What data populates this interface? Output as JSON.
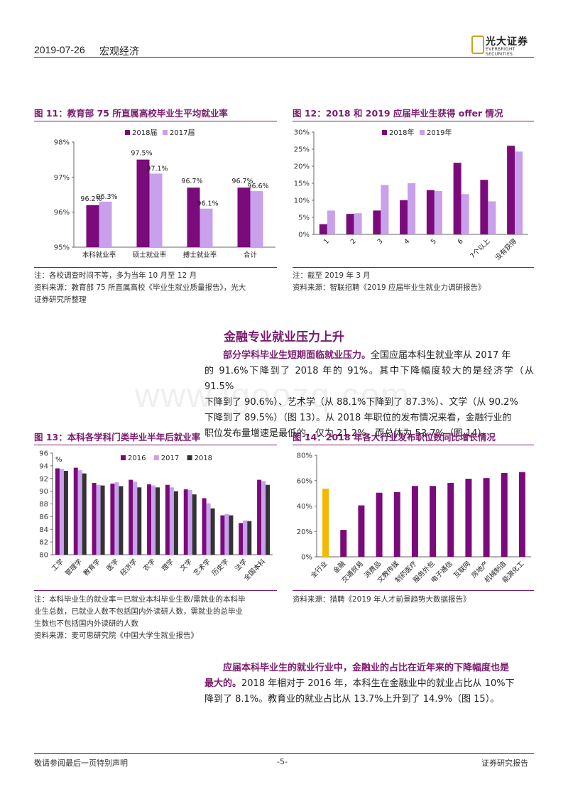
{
  "header": {
    "date": "2019-07-26",
    "section": "宏观经济",
    "logo_cn": "光大证券",
    "logo_en": "EVERBRIGHT SECURITIES"
  },
  "fig11": {
    "title": "图 11：教育部 75 所直属高校毕业生平均就业率",
    "note": "注：各校调查时间不等，多为当年 10 月至 12 月",
    "source_line1": "资料来源：教育部 75 所直属高校《毕业生就业质量报告》，光大",
    "source_line2": "证券研究所整理"
  },
  "fig12": {
    "title": "图 12：2018 和 2019 应届毕业生获得 offer 情况",
    "note": "注：截至 2019 年 3 月",
    "source": "资料来源：智联招聘《2019 应届毕业生就业力调研报告》"
  },
  "fig13": {
    "title": "图 13：本科各学科门类毕业半年后就业率",
    "note_line1": "注：本科毕业生的就业率＝已就业本科毕业生数/需就业的本科毕",
    "note_line2": "业生总数，已就业人数不包括国内外读研人数，需就业的总毕业",
    "note_line3": "生数也不包括国内外读研的人数",
    "source": "资料来源：麦可思研究院《中国大学生就业报告》"
  },
  "fig14": {
    "title": "图 14：2018 年各大行业发布职位数同比增长情况",
    "source": "资料来源：猎聘《2019 年人才前景趋势大数据报告》"
  },
  "section_title": "金融专业就业压力上升",
  "para1": {
    "lead": "部分学科毕业生短期面临就业压力。",
    "l1": "全国应届本科生就业率从 2017 年",
    "l2": "的 91.6%下降到了 2018 年的 91%。其中下降幅度较大的是经济学（从 91.5%",
    "l3": "下降到了 90.6%）、艺术学（从 88.1%下降到了 87.3%）、文学（从 90.2%",
    "l4": "下降到了 89.5%）（图 13）。从 2018 年职位的发布情况来看，金融行业的",
    "l5": "职位发布量增速是最低的，仅为 21.2%，而总体为 53.7%（图 14）。"
  },
  "para2": {
    "lead1": "应届本科毕业生的就业行业中，金融业的占比在近年来的下降幅度也是",
    "lead2": "最大的。",
    "t2": "2018 年相对于 2016 年，本科生在金融业中的就业占比从 10%下",
    "t3": "降到了 8.1%。教育业的就业占比从 13.7%上升到了 14.9%（图 15）。"
  },
  "footer": {
    "left": "敬请参阅最后一页特别声明",
    "center": "-5-",
    "right": "证券研究报告"
  },
  "watermark": "www.igoozq.com",
  "colors": {
    "purple": "#7b0a7b",
    "light_purple": "#c9a0ec",
    "black": "#333333",
    "gold": "#f5b800",
    "title": "#7b1a6e"
  },
  "chart_data": [
    {
      "id": "fig11",
      "type": "bar",
      "categories": [
        "本科就业率",
        "硕士就业率",
        "搏士就业率",
        "合计"
      ],
      "series": [
        {
          "name": "2018届",
          "values": [
            96.2,
            97.5,
            96.7,
            96.7
          ],
          "labels": [
            "96.2%",
            "97.5%",
            "96.7%",
            "96.7%"
          ]
        },
        {
          "name": "2017届",
          "values": [
            96.3,
            97.1,
            96.1,
            96.6
          ],
          "labels": [
            "96.3%",
            "97.1%",
            "96.1%",
            "96.6%"
          ]
        }
      ],
      "ylim": [
        95,
        98
      ],
      "yticks": [
        "95%",
        "96%",
        "97%",
        "98%"
      ],
      "legend": "top-left"
    },
    {
      "id": "fig12",
      "type": "bar",
      "categories": [
        "1",
        "2",
        "3",
        "4",
        "5",
        "6",
        "7个以上",
        "没有获得"
      ],
      "series": [
        {
          "name": "2018年",
          "values": [
            3,
            6,
            7,
            10,
            13,
            21,
            16,
            26
          ]
        },
        {
          "name": "2019年",
          "values": [
            7,
            6.2,
            14.5,
            15,
            12.7,
            11.8,
            9.7,
            24.3
          ]
        }
      ],
      "ylim": [
        0,
        30
      ],
      "yticks": [
        "0%",
        "5%",
        "10%",
        "15%",
        "20%",
        "25%",
        "30%"
      ],
      "legend": "top"
    },
    {
      "id": "fig13",
      "type": "bar",
      "categories": [
        "工学",
        "管理学",
        "教育学",
        "医学",
        "经济学",
        "农学",
        "理学",
        "文学",
        "艺术学",
        "历史学",
        "法学",
        "全国本科"
      ],
      "series": [
        {
          "name": "2016",
          "values": [
            93.6,
            93.7,
            91.3,
            91.2,
            91.8,
            91.1,
            91.0,
            90.3,
            88.9,
            86.2,
            85.0,
            91.8
          ]
        },
        {
          "name": "2017",
          "values": [
            93.5,
            93.3,
            91.0,
            91.4,
            91.5,
            90.9,
            90.6,
            90.2,
            88.1,
            86.4,
            85.4,
            91.6
          ]
        },
        {
          "name": "2018",
          "values": [
            93.2,
            92.8,
            90.9,
            90.8,
            90.6,
            90.6,
            90.0,
            89.5,
            87.3,
            86.2,
            85.3,
            91.0
          ]
        }
      ],
      "ylim": [
        80,
        96
      ],
      "yticks": [
        "80",
        "82",
        "84",
        "86",
        "88",
        "90",
        "92",
        "94",
        "96"
      ],
      "yunit": "%",
      "legend": "top"
    },
    {
      "id": "fig14",
      "type": "bar",
      "categories": [
        "全行业",
        "金融",
        "交通贸易",
        "消费品",
        "文教传媒",
        "制药医疗",
        "服务外包",
        "电子通信",
        "互联网",
        "房地产",
        "机械制造",
        "能源化工"
      ],
      "values": [
        53.7,
        21.2,
        40.5,
        50.5,
        51,
        55.8,
        55.8,
        58.2,
        61.5,
        62,
        66,
        66.8
      ],
      "ylim": [
        0,
        80
      ],
      "yticks": [
        "0%",
        "20%",
        "40%",
        "60%",
        "80%"
      ]
    }
  ]
}
